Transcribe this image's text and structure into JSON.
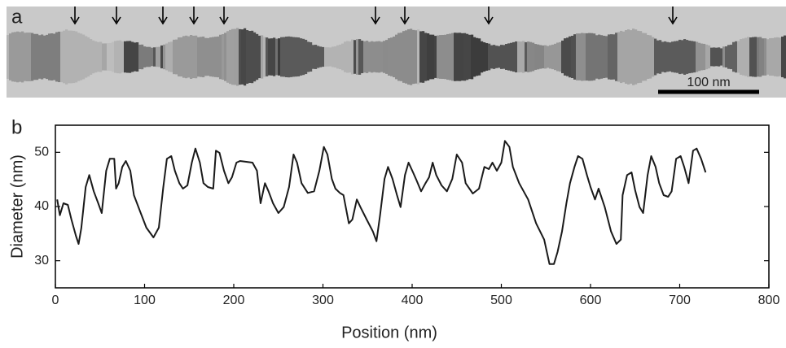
{
  "image_panel": {
    "label": "a",
    "scale_bar": "100 nm"
  },
  "chart_data": {
    "type": "line",
    "panel_label": "b",
    "x_label": "Position (nm)",
    "y_label": "Diameter (nm)",
    "color": "#1a1a1a",
    "x": [
      2,
      5,
      9,
      14,
      18,
      23,
      26,
      29,
      34,
      38,
      43,
      48,
      52,
      57,
      61,
      66,
      68,
      71,
      75,
      79,
      84,
      88,
      95,
      102,
      110,
      116,
      121,
      125,
      130,
      134,
      139,
      143,
      148,
      153,
      157,
      162,
      166,
      171,
      177,
      180,
      184,
      189,
      194,
      198,
      203,
      207,
      221,
      226,
      230,
      235,
      239,
      244,
      250,
      256,
      262,
      267,
      271,
      276,
      283,
      290,
      296,
      301,
      305,
      310,
      314,
      319,
      323,
      329,
      333,
      338,
      342,
      349,
      356,
      360,
      364,
      369,
      373,
      378,
      383,
      387,
      392,
      396,
      401,
      405,
      410,
      415,
      419,
      423,
      427,
      433,
      439,
      445,
      450,
      456,
      460,
      468,
      475,
      481,
      486,
      490,
      495,
      500,
      504,
      509,
      513,
      520,
      530,
      539,
      548,
      554,
      559,
      563,
      568,
      573,
      577,
      582,
      586,
      591,
      596,
      600,
      605,
      609,
      616,
      623,
      629,
      634,
      636,
      641,
      646,
      650,
      655,
      659,
      664,
      668,
      673,
      677,
      682,
      687,
      691,
      696,
      701,
      705,
      710,
      715,
      719,
      724,
      729
    ],
    "values": [
      41.3,
      38.4,
      40.6,
      40.3,
      37.6,
      34.6,
      33.1,
      36,
      43.6,
      45.8,
      42.8,
      40.6,
      38.8,
      46.6,
      48.8,
      48.8,
      43.3,
      44.3,
      47.3,
      48.4,
      46.6,
      42.1,
      39.1,
      36.1,
      34.3,
      36.1,
      43.6,
      48.8,
      49.3,
      46.6,
      44.3,
      43.3,
      43.9,
      48.1,
      50.7,
      48.1,
      44.3,
      43.6,
      43.3,
      50.3,
      49.9,
      46.6,
      44.3,
      45.4,
      48.1,
      48.4,
      48.1,
      46.6,
      40.6,
      44.3,
      42.8,
      40.6,
      38.8,
      39.9,
      43.6,
      49.6,
      48.1,
      44.3,
      42.5,
      42.8,
      46.6,
      51,
      49.6,
      45.1,
      43.3,
      42.5,
      42.1,
      36.9,
      37.6,
      41.3,
      39.9,
      37.6,
      35.4,
      33.6,
      38.4,
      45.1,
      47.3,
      45.1,
      42.1,
      39.9,
      45.8,
      48.1,
      46.3,
      44.8,
      42.8,
      44.3,
      45.4,
      48.1,
      45.8,
      43.9,
      42.8,
      45.1,
      49.6,
      48.1,
      44.3,
      42.4,
      43.3,
      47.3,
      46.9,
      48.1,
      46.6,
      48.1,
      52.1,
      51,
      47.3,
      44.3,
      41.3,
      36.9,
      33.9,
      29.4,
      29.4,
      31.6,
      35.4,
      40.6,
      44.3,
      47.3,
      49.3,
      48.8,
      45.8,
      43.6,
      41.3,
      43.3,
      39.9,
      35.4,
      33.1,
      33.9,
      42.1,
      45.8,
      46.3,
      43,
      39.9,
      38.8,
      45.8,
      49.3,
      47.3,
      44.3,
      42.1,
      41.8,
      42.8,
      48.8,
      49.3,
      47.3,
      44.3,
      50.3,
      50.7,
      48.8,
      46.3
    ],
    "xlim": [
      0,
      800
    ],
    "xticks": [
      0,
      100,
      200,
      300,
      400,
      500,
      600,
      700,
      800
    ],
    "ylim": [
      25,
      55
    ],
    "yticks": [
      30,
      40,
      50
    ]
  }
}
